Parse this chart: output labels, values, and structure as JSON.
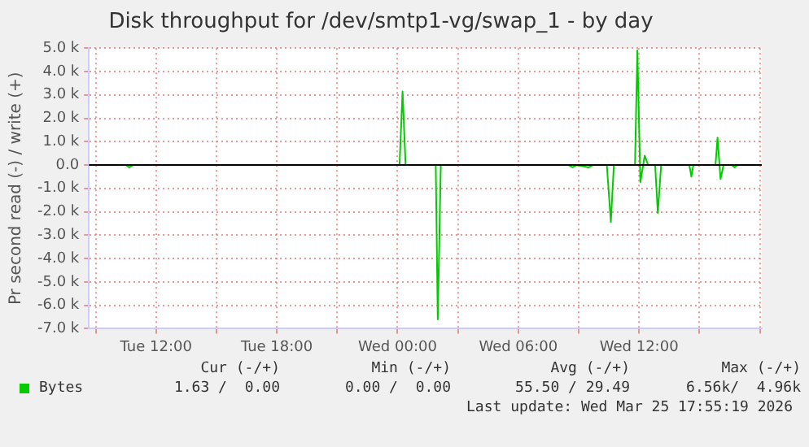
{
  "chart_data": {
    "type": "line",
    "title": "Disk throughput for /dev/smtp1-vg/swap_1 - by day",
    "ylabel": "Pr second read (-) / write (+)",
    "series": [
      {
        "name": "Bytes",
        "color": "#00cc00",
        "x": [
          "2026-03-24T08:42",
          "2026-03-24T10:30",
          "2026-03-24T10:40",
          "2026-03-24T10:51",
          "2026-03-25T00:06",
          "2026-03-25T00:15",
          "2026-03-25T00:24",
          "2026-03-25T01:54",
          "2026-03-25T02:00",
          "2026-03-25T02:09",
          "2026-03-25T08:30",
          "2026-03-25T08:42",
          "2026-03-25T08:54",
          "2026-03-25T09:30",
          "2026-03-25T09:42",
          "2026-03-25T10:24",
          "2026-03-25T10:36",
          "2026-03-25T10:45",
          "2026-03-25T11:48",
          "2026-03-25T11:55",
          "2026-03-25T12:04",
          "2026-03-25T12:17",
          "2026-03-25T12:27",
          "2026-03-25T12:48",
          "2026-03-25T12:56",
          "2026-03-25T13:06",
          "2026-03-25T14:30",
          "2026-03-25T14:36",
          "2026-03-25T14:42",
          "2026-03-25T15:48",
          "2026-03-25T15:54",
          "2026-03-25T16:03",
          "2026-03-25T16:12",
          "2026-03-25T16:36",
          "2026-03-25T16:45",
          "2026-03-25T16:54",
          "2026-03-25T17:54"
        ],
        "values": [
          0,
          0,
          -100,
          0,
          0,
          3150,
          0,
          0,
          -6600,
          0,
          0,
          -100,
          0,
          -100,
          0,
          0,
          -2440,
          0,
          0,
          4900,
          -730,
          400,
          0,
          0,
          -2050,
          0,
          0,
          -500,
          0,
          0,
          1170,
          -600,
          0,
          0,
          -100,
          0,
          0
        ]
      }
    ],
    "xlim": [
      "2026-03-24T08:40",
      "2026-03-25T18:06"
    ],
    "xticks": [
      {
        "value": "2026-03-24T09:00",
        "label": null
      },
      {
        "value": "2026-03-24T12:00",
        "label": "Tue 12:00"
      },
      {
        "value": "2026-03-24T15:00",
        "label": null
      },
      {
        "value": "2026-03-24T18:00",
        "label": "Tue 18:00"
      },
      {
        "value": "2026-03-24T21:00",
        "label": null
      },
      {
        "value": "2026-03-25T00:00",
        "label": "Wed 00:00"
      },
      {
        "value": "2026-03-25T03:00",
        "label": null
      },
      {
        "value": "2026-03-25T06:00",
        "label": "Wed 06:00"
      },
      {
        "value": "2026-03-25T09:00",
        "label": null
      },
      {
        "value": "2026-03-25T12:00",
        "label": "Wed 12:00"
      },
      {
        "value": "2026-03-25T15:00",
        "label": null
      },
      {
        "value": "2026-03-25T18:00",
        "label": null
      }
    ],
    "ylim": [
      -7000,
      5000
    ],
    "yticks": [
      {
        "value": -7000,
        "label": "-7.0 k"
      },
      {
        "value": -6000,
        "label": "-6.0 k"
      },
      {
        "value": -5000,
        "label": "-5.0 k"
      },
      {
        "value": -4000,
        "label": "-4.0 k"
      },
      {
        "value": -3000,
        "label": "-3.0 k"
      },
      {
        "value": -2000,
        "label": "-2.0 k"
      },
      {
        "value": -1000,
        "label": "-1.0 k"
      },
      {
        "value": 0,
        "label": "0.0"
      },
      {
        "value": 1000,
        "label": "1.0 k"
      },
      {
        "value": 2000,
        "label": "2.0 k"
      },
      {
        "value": 3000,
        "label": "3.0 k"
      },
      {
        "value": 4000,
        "label": "4.0 k"
      },
      {
        "value": 5000,
        "label": "5.0 k"
      }
    ],
    "ref_lines": [
      {
        "axis": "y",
        "value": 0,
        "color": "#000000"
      }
    ],
    "grid": true,
    "legend": "bottom",
    "marker": "none",
    "line_style": "solid",
    "annotations": [
      "Cur (-/+)",
      "Min (-/+)",
      "Avg (-/+)",
      "Max (-/+)",
      "1.63 /  0.00",
      "0.00 /  0.00",
      "55.50 / 29.49",
      "6.56k/  4.96k",
      "Last update: Wed Mar 25 17:55:19 2026"
    ]
  }
}
